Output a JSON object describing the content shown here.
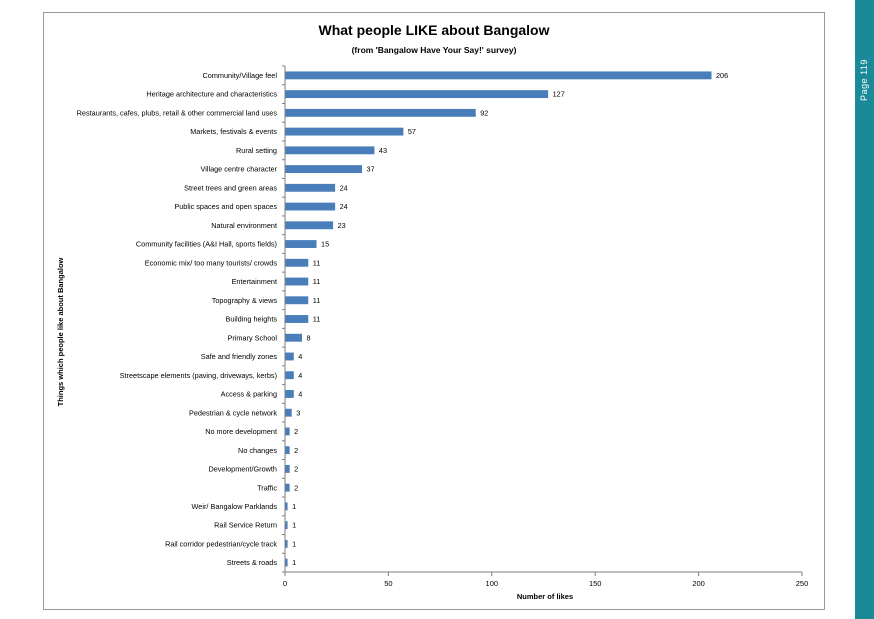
{
  "page_tab": {
    "label": "Page 119",
    "color": "#1a8a98"
  },
  "chart_data": {
    "type": "bar",
    "orientation": "horizontal",
    "title": "What people LIKE about Bangalow",
    "subtitle": "(from 'Bangalow Have Your Say!' survey)",
    "xlabel": "Number of likes",
    "ylabel": "Things which people like about Bangalow",
    "xlim": [
      0,
      250
    ],
    "xticks": [
      0,
      50,
      100,
      150,
      200,
      250
    ],
    "grid": false,
    "bar_color": "#4a7ebb",
    "categories": [
      "Community/Village feel",
      "Heritage architecture and characteristics",
      "Restaurants, cafes, plubs, retail & other commercial land uses",
      "Markets, festivals & events",
      "Rural setting",
      "Village centre character",
      "Street trees and green areas",
      "Public spaces and open spaces",
      "Natural environment",
      "Community facilities (A&I Hall, sports fields)",
      "Economic mix/ too many tourists/ crowds",
      "Entertainment",
      "Topography & views",
      "Building heights",
      "Primary School",
      "Safe and friendly zones",
      "Streetscape elements (paving, driveways, kerbs)",
      "Access & parking",
      "Pedestrian & cycle network",
      "No more development",
      "No changes",
      "Development/Growth",
      "Traffic",
      "Weir/ Bangalow Parklands",
      "Rail Service Return",
      "Rail corridor pedestrian/cycle track",
      "Streets & roads"
    ],
    "values": [
      206,
      127,
      92,
      57,
      43,
      37,
      24,
      24,
      23,
      15,
      11,
      11,
      11,
      11,
      8,
      4,
      4,
      4,
      3,
      2,
      2,
      2,
      2,
      1,
      1,
      1,
      1
    ]
  }
}
